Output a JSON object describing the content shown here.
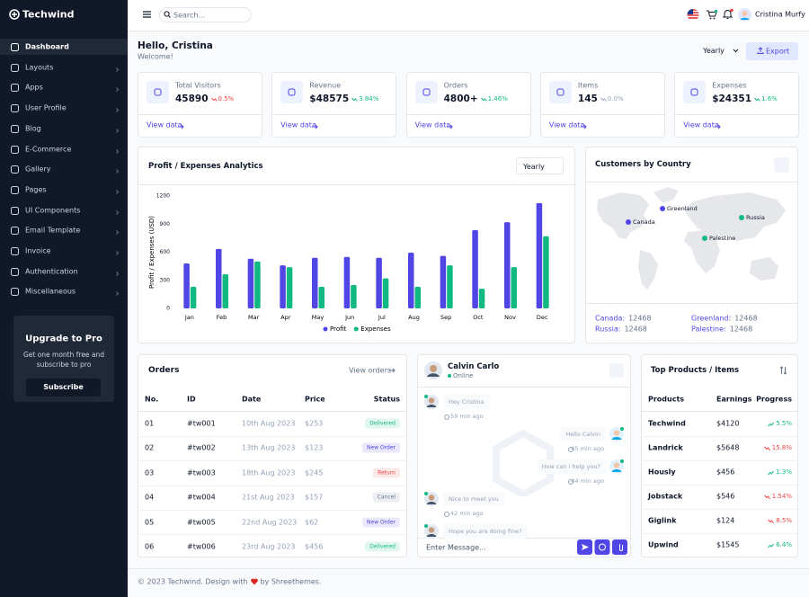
{
  "brand": "Techwind",
  "header": {
    "search": "Search...",
    "user": "Cristina Murfy"
  },
  "sidebar": {
    "items": [
      "Dashboard",
      "Layouts",
      "Apps",
      "User Profile",
      "Blog",
      "E-Commerce",
      "Gallery",
      "Pages",
      "UI Components",
      "Email Template",
      "Invoice",
      "Authentication",
      "Miscellaneous"
    ],
    "upgrade": {
      "title": "Upgrade to Pro",
      "text": "Get one month free and subscribe to pro",
      "button": "Subscribe"
    }
  },
  "greeting": {
    "title": "Hello, Cristina",
    "subtitle": "Welcome!",
    "period": "Yearly",
    "export": "Export"
  },
  "stats": [
    {
      "label": "Total Visitors",
      "value": "45890",
      "change": "0.5%",
      "color": "#ef4444",
      "link": "View data"
    },
    {
      "label": "Revenue",
      "value": "$48575",
      "change": "3.84%",
      "color": "#10b981",
      "link": "View data"
    },
    {
      "label": "Orders",
      "value": "4800+",
      "change": "1.46%",
      "color": "#10b981",
      "link": "View data"
    },
    {
      "label": "Items",
      "value": "145",
      "change": "0.0%",
      "color": "#94a3b8",
      "link": "View data"
    },
    {
      "label": "Expenses",
      "value": "$24351",
      "change": "1.6%",
      "color": "#10b981",
      "link": "View data"
    }
  ],
  "chart_data": {
    "type": "bar",
    "title": "Profit / Expenses Analytics",
    "filter": "Yearly",
    "ylabel": "Profit / Expenses (USD)",
    "categories": [
      "Jan",
      "Feb",
      "Mar",
      "Apr",
      "May",
      "Jun",
      "Jul",
      "Aug",
      "Sep",
      "Oct",
      "Nov",
      "Dec"
    ],
    "series": [
      {
        "name": "Profit",
        "color": "#4f46e5",
        "values": [
          480,
          635,
          530,
          460,
          540,
          550,
          540,
          595,
          560,
          835,
          920,
          1125
        ]
      },
      {
        "name": "Expenses",
        "color": "#10b981",
        "values": [
          230,
          365,
          500,
          440,
          230,
          250,
          320,
          230,
          460,
          210,
          440,
          770
        ]
      }
    ],
    "ylim": [
      0,
      1200
    ],
    "yticks": [
      0,
      300,
      600,
      900,
      1200
    ],
    "grid": false,
    "legend": "bottom"
  },
  "customers": {
    "title": "Customers by Country",
    "countries": [
      {
        "name": "Canada",
        "value": "12468",
        "color": "#4f46e5"
      },
      {
        "name": "Greenland",
        "value": "12468",
        "color": "#4f46e5"
      },
      {
        "name": "Russia",
        "value": "12468",
        "color": "#10b981"
      },
      {
        "name": "Palestine",
        "value": "12468",
        "color": "#10b981"
      }
    ]
  },
  "orders": {
    "title": "Orders",
    "link": "View orders",
    "columns": [
      "No.",
      "ID",
      "Date",
      "Price",
      "Status"
    ],
    "rows": [
      [
        "01",
        "#tw001",
        "10th Aug 2023",
        "$253",
        "Delivered"
      ],
      [
        "02",
        "#tw002",
        "13th Aug 2023",
        "$123",
        "New Order"
      ],
      [
        "03",
        "#tw003",
        "18th Aug 2023",
        "$245",
        "Return"
      ],
      [
        "04",
        "#tw004",
        "21st Aug 2023",
        "$157",
        "Cancel"
      ],
      [
        "05",
        "#tw005",
        "22nd Aug 2023",
        "$62",
        "New Order"
      ],
      [
        "06",
        "#tw006",
        "23rd Aug 2023",
        "$456",
        "Delivered"
      ]
    ],
    "status_colors": [
      "#10b981",
      "#4f46e5",
      "#ef4444",
      "#64748b",
      "#4f46e5",
      "#10b981"
    ]
  },
  "chat": {
    "name": "Calvin Carlo",
    "status": "Online",
    "messages": [
      {
        "text": "Hey Cristina",
        "time": "59 min ago",
        "side": "left"
      },
      {
        "text": "Hello Calvin",
        "time": "45 min ago",
        "side": "right"
      },
      {
        "text": "How can i help you?",
        "time": "44 min ago",
        "side": "right"
      },
      {
        "text": "Nice to meet you",
        "time": "42 min ago",
        "side": "left"
      },
      {
        "text": "Hope you are doing fine?",
        "side": "left"
      }
    ],
    "placeholder": "Enter Message..."
  },
  "products": {
    "title": "Top Products / Items",
    "columns": [
      "Products",
      "Earnings",
      "Progress"
    ],
    "rows": [
      {
        "name": "Techwind",
        "earnings": "$4120",
        "progress": "5.5%",
        "color": "#10b981"
      },
      {
        "name": "Landrick",
        "earnings": "$5648",
        "progress": "15.8%",
        "color": "#ef4444"
      },
      {
        "name": "Hously",
        "earnings": "$456",
        "progress": "1.3%",
        "color": "#10b981"
      },
      {
        "name": "Jobstack",
        "earnings": "$546",
        "progress": "1.54%",
        "color": "#ef4444"
      },
      {
        "name": "Giglink",
        "earnings": "$124",
        "progress": "8.5%",
        "color": "#ef4444"
      },
      {
        "name": "Upwind",
        "earnings": "$1545",
        "progress": "6.4%",
        "color": "#10b981"
      }
    ]
  },
  "footer": {
    "text": "© 2023 Techwind. Design with",
    "credit": "by Shreethemes."
  }
}
